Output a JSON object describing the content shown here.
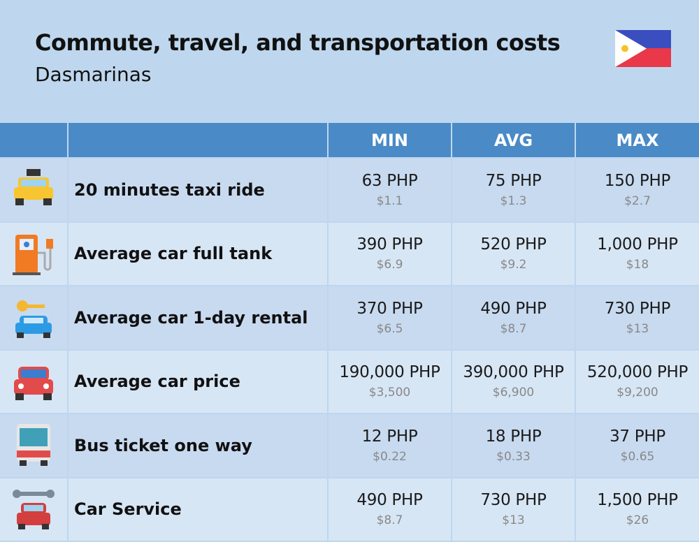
{
  "header": {
    "title": "Commute, travel, and transportation costs",
    "subtitle": "Dasmarinas"
  },
  "table": {
    "columns": [
      "MIN",
      "AVG",
      "MAX"
    ],
    "rows": [
      {
        "label": "20 minutes taxi ride",
        "cells": [
          {
            "local": "63 PHP",
            "usd": "$1.1"
          },
          {
            "local": "75 PHP",
            "usd": "$1.3"
          },
          {
            "local": "150 PHP",
            "usd": "$2.7"
          }
        ]
      },
      {
        "label": "Average car full tank",
        "cells": [
          {
            "local": "390 PHP",
            "usd": "$6.9"
          },
          {
            "local": "520 PHP",
            "usd": "$9.2"
          },
          {
            "local": "1,000 PHP",
            "usd": "$18"
          }
        ]
      },
      {
        "label": "Average car 1-day rental",
        "cells": [
          {
            "local": "370 PHP",
            "usd": "$6.5"
          },
          {
            "local": "490 PHP",
            "usd": "$8.7"
          },
          {
            "local": "730 PHP",
            "usd": "$13"
          }
        ]
      },
      {
        "label": "Average car price",
        "cells": [
          {
            "local": "190,000 PHP",
            "usd": "$3,500"
          },
          {
            "local": "390,000 PHP",
            "usd": "$6,900"
          },
          {
            "local": "520,000 PHP",
            "usd": "$9,200"
          }
        ]
      },
      {
        "label": "Bus ticket one way",
        "cells": [
          {
            "local": "12 PHP",
            "usd": "$0.22"
          },
          {
            "local": "18 PHP",
            "usd": "$0.33"
          },
          {
            "local": "37 PHP",
            "usd": "$0.65"
          }
        ]
      },
      {
        "label": "Car Service",
        "cells": [
          {
            "local": "490 PHP",
            "usd": "$8.7"
          },
          {
            "local": "730 PHP",
            "usd": "$13"
          },
          {
            "local": "1,500 PHP",
            "usd": "$26"
          }
        ]
      }
    ]
  }
}
